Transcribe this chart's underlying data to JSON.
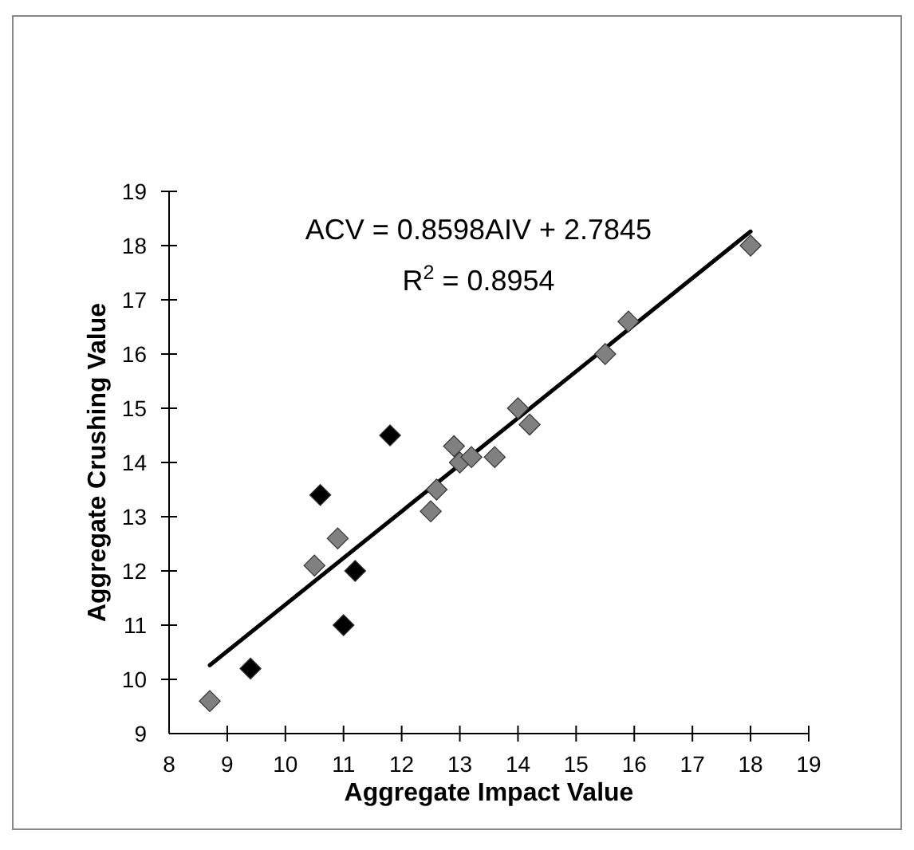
{
  "chart_data": {
    "type": "scatter",
    "xlabel": "Aggregate Impact Value",
    "ylabel": "Aggregate Crushing Value",
    "annotations": [
      {
        "text": "ACV = 0.8598AIV + 2.7845"
      },
      {
        "text": "R$^{2}$ = 0.8954"
      }
    ],
    "xlim": [
      8,
      19
    ],
    "xticks": [
      8,
      9,
      10,
      11,
      12,
      13,
      14,
      15,
      16,
      17,
      18,
      19
    ],
    "ylim": [
      9,
      19
    ],
    "yticks": [
      9,
      10,
      11,
      12,
      13,
      14,
      15,
      16,
      17,
      18,
      19
    ],
    "grid": false,
    "marker": "diamond",
    "series": [
      {
        "type": "line",
        "color": "#000000",
        "x": [
          8.7,
          18
        ],
        "values": [
          10.26,
          18.26
        ],
        "marker": "none",
        "line_style": "solid"
      },
      {
        "color": "#808080",
        "x": [
          8.7,
          10.5,
          10.9,
          12.5,
          12.6,
          12.9,
          13.0,
          13.2,
          13.6,
          14.0,
          14.2,
          15.5,
          15.9,
          18.0
        ],
        "values": [
          9.6,
          12.1,
          12.6,
          13.1,
          13.5,
          14.3,
          14.0,
          14.1,
          14.1,
          15.0,
          14.7,
          16.0,
          16.6,
          18.0
        ]
      },
      {
        "color": "#000000",
        "x": [
          9.4,
          10.6,
          11.0,
          11.2,
          11.8
        ],
        "values": [
          10.2,
          13.4,
          11.0,
          12.0,
          14.5
        ]
      }
    ]
  }
}
